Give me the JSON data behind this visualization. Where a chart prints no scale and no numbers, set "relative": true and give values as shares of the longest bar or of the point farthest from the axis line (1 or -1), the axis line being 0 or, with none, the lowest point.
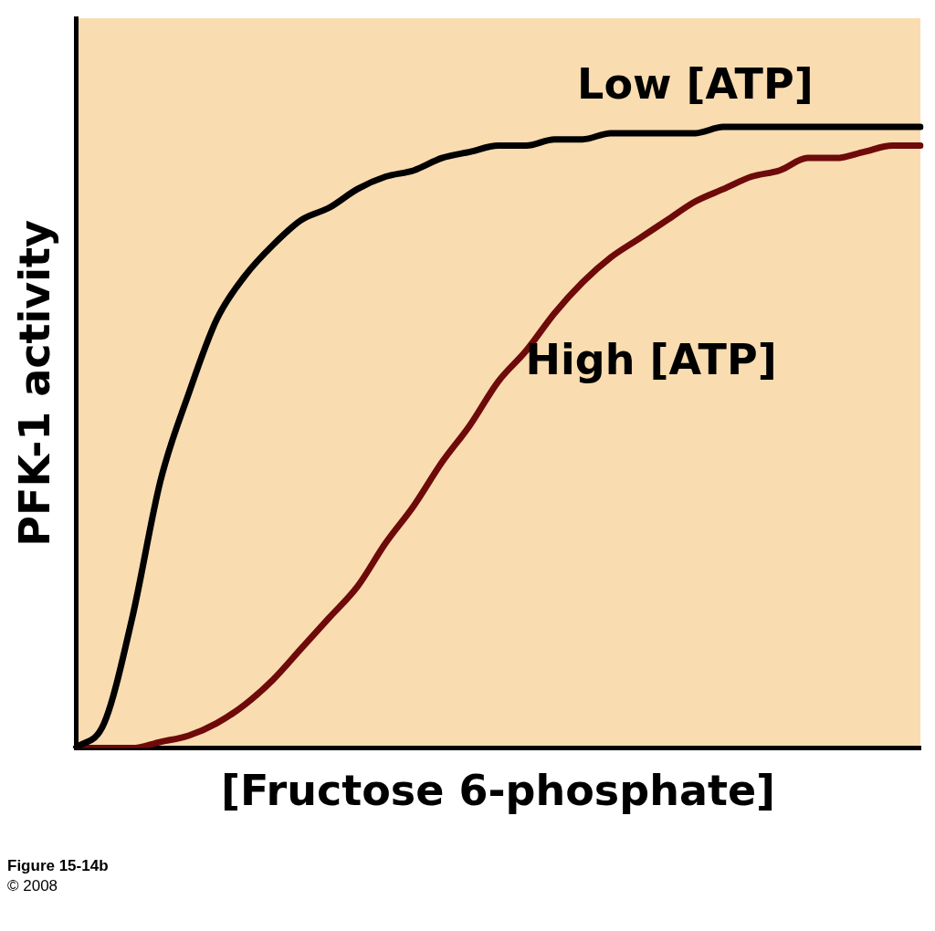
{
  "chart_data": {
    "type": "line",
    "relative": true,
    "xlabel": "[Fructose 6-phosphate]",
    "ylabel": "PFK-1 activity",
    "categories": [
      null,
      null,
      null,
      null,
      null,
      null,
      null,
      null,
      null,
      null,
      null,
      null,
      null,
      null,
      null,
      null,
      null,
      null,
      null,
      null,
      null,
      null,
      null,
      null,
      null,
      null,
      null,
      null,
      null,
      null,
      null
    ],
    "series": [
      {
        "name": "Low [ATP]",
        "color": "#000000",
        "values": [
          0,
          0.04,
          0.21,
          0.43,
          0.57,
          0.69,
          0.76,
          0.81,
          0.85,
          0.87,
          0.9,
          0.92,
          0.93,
          0.95,
          0.96,
          0.97,
          0.97,
          0.98,
          0.98,
          0.99,
          0.99,
          0.99,
          0.99,
          1,
          1,
          1,
          1,
          1,
          1,
          1,
          1
        ]
      },
      {
        "name": "High [ATP]",
        "color": "#6e0a0a",
        "values": [
          0,
          0,
          0,
          0.01,
          0.02,
          0.04,
          0.07,
          0.11,
          0.16,
          0.21,
          0.26,
          0.33,
          0.39,
          0.46,
          0.52,
          0.59,
          0.64,
          0.7,
          0.75,
          0.79,
          0.82,
          0.85,
          0.88,
          0.9,
          0.92,
          0.93,
          0.95,
          0.95,
          0.96,
          0.97,
          0.97
        ]
      }
    ],
    "annotations": [
      "Figure 15-14b",
      "© 2008"
    ],
    "legend": false,
    "grid": false,
    "marker": "none",
    "line_style": "solid"
  }
}
